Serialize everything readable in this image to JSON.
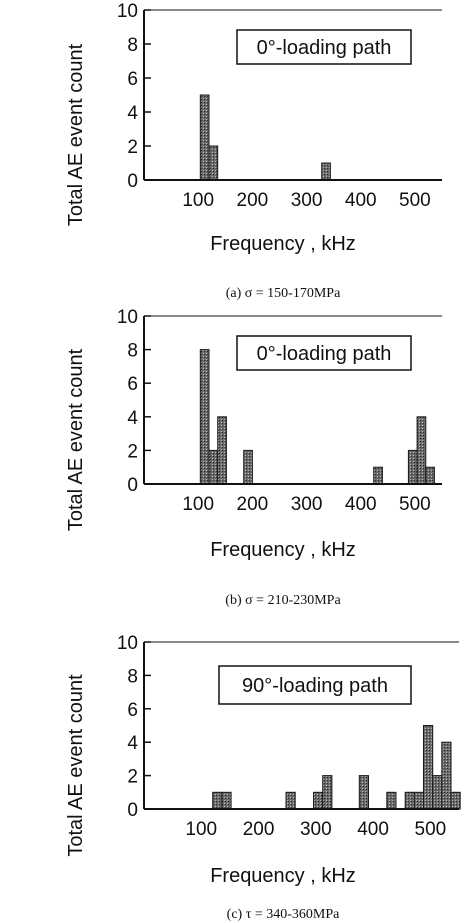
{
  "chart_data": [
    {
      "type": "bar",
      "box_label": "0°-loading path",
      "ylabel": "Total AE event count",
      "xlabel": "Frequency ,  kHz",
      "caption": "(a)  σ = 150-170MPa",
      "xlim": [
        0,
        550
      ],
      "ylim": [
        0,
        10
      ],
      "x_ticks": [
        100,
        200,
        300,
        400,
        500
      ],
      "y_ticks": [
        0,
        2,
        4,
        6,
        8,
        10
      ],
      "bin_width": 16,
      "bars": [
        {
          "x": 104,
          "value": 5
        },
        {
          "x": 120,
          "value": 2
        },
        {
          "x": 328,
          "value": 1
        }
      ]
    },
    {
      "type": "bar",
      "box_label": "0°-loading path",
      "ylabel": "Total AE event count",
      "xlabel": "Frequency ,  kHz",
      "caption": "(b)  σ = 210-230MPa",
      "xlim": [
        0,
        550
      ],
      "ylim": [
        0,
        10
      ],
      "x_ticks": [
        100,
        200,
        300,
        400,
        500
      ],
      "y_ticks": [
        0,
        2,
        4,
        6,
        8,
        10
      ],
      "bin_width": 16,
      "bars": [
        {
          "x": 104,
          "value": 8
        },
        {
          "x": 120,
          "value": 2
        },
        {
          "x": 136,
          "value": 4
        },
        {
          "x": 184,
          "value": 2
        },
        {
          "x": 424,
          "value": 1
        },
        {
          "x": 488,
          "value": 2
        },
        {
          "x": 504,
          "value": 4
        },
        {
          "x": 520,
          "value": 1
        }
      ]
    },
    {
      "type": "bar",
      "box_label": "90°-loading path",
      "ylabel": "Total AE event count",
      "xlabel": "Frequency ,  kHz",
      "caption": "(c)  τ = 340-360MPa",
      "xlim": [
        0,
        550
      ],
      "ylim": [
        0,
        10
      ],
      "x_ticks": [
        100,
        200,
        300,
        400,
        500
      ],
      "y_ticks": [
        0,
        2,
        4,
        6,
        8,
        10
      ],
      "bin_width": 16,
      "bars": [
        {
          "x": 120,
          "value": 1
        },
        {
          "x": 136,
          "value": 1
        },
        {
          "x": 248,
          "value": 1
        },
        {
          "x": 296,
          "value": 1
        },
        {
          "x": 312,
          "value": 2
        },
        {
          "x": 376,
          "value": 2
        },
        {
          "x": 424,
          "value": 1
        },
        {
          "x": 456,
          "value": 1
        },
        {
          "x": 472,
          "value": 1
        },
        {
          "x": 488,
          "value": 5
        },
        {
          "x": 504,
          "value": 2
        },
        {
          "x": 520,
          "value": 4
        },
        {
          "x": 536,
          "value": 1
        }
      ]
    }
  ],
  "colors": {
    "bar_fill": "#5a5a5a",
    "bar_stroke": "#1a1a1a",
    "axis": "#111111"
  }
}
